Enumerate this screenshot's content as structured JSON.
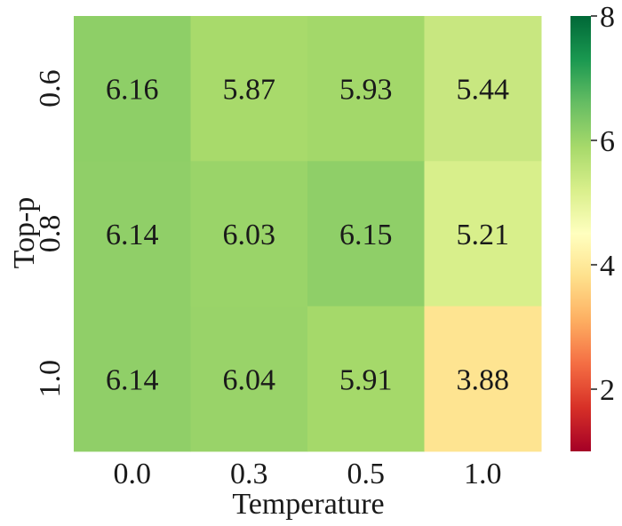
{
  "chart_data": {
    "type": "heatmap",
    "title": "",
    "xlabel": "Temperature",
    "ylabel": "Top-p",
    "x_categories": [
      "0.0",
      "0.3",
      "0.5",
      "1.0"
    ],
    "y_categories": [
      "0.6",
      "0.8",
      "1.0"
    ],
    "values": [
      [
        6.16,
        5.87,
        5.93,
        5.44
      ],
      [
        6.14,
        6.03,
        6.15,
        5.21
      ],
      [
        6.14,
        6.04,
        5.91,
        3.88
      ]
    ],
    "cell_labels": [
      [
        "6.16",
        "5.87",
        "5.93",
        "5.44"
      ],
      [
        "6.14",
        "6.03",
        "6.15",
        "5.21"
      ],
      [
        "6.14",
        "6.04",
        "5.91",
        "3.88"
      ]
    ],
    "colormap": "RdYlGn",
    "color_range": [
      1,
      8
    ],
    "colorbar_ticks": [
      2,
      4,
      6,
      8
    ],
    "colorbar_tick_labels": [
      "2",
      "4",
      "6",
      "8"
    ],
    "grid": false,
    "legend": "colorbar-right"
  }
}
